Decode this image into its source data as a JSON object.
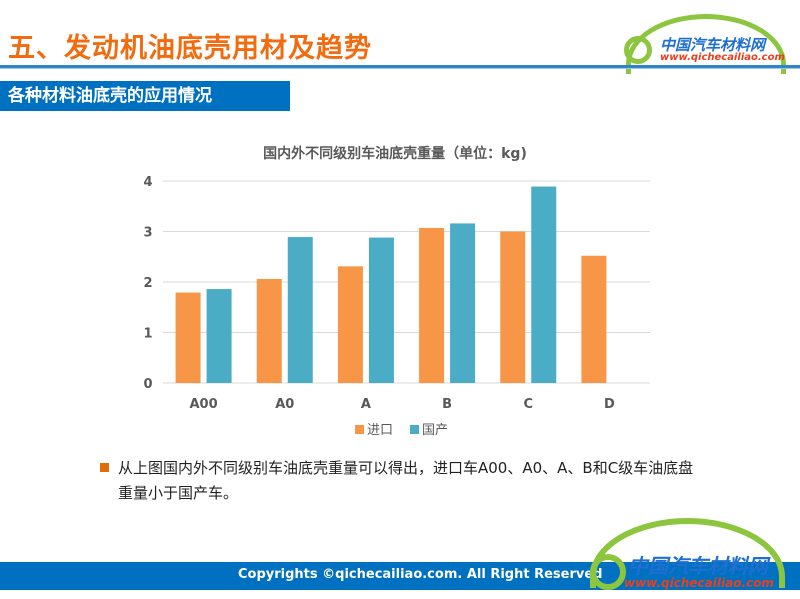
{
  "header": {
    "title": "五、发动机油底壳用材及趋势",
    "logo_cn": "中国汽车材料网",
    "logo_url": "www.qichecailiao.com"
  },
  "section": {
    "title": "各种材料油底壳的应用情况"
  },
  "colors": {
    "import": "#f79646",
    "domestic": "#4bacc6",
    "accent": "#0070c0"
  },
  "chart_data": {
    "type": "bar",
    "title": "国内外不同级别车油底壳重量（单位：kg)",
    "categories": [
      "A00",
      "A0",
      "A",
      "B",
      "C",
      "D"
    ],
    "series": [
      {
        "name": "进口",
        "values": [
          1.79,
          2.06,
          2.31,
          3.07,
          3.0,
          2.52
        ]
      },
      {
        "name": "国产",
        "values": [
          1.86,
          2.89,
          2.88,
          3.16,
          3.89,
          null
        ]
      }
    ],
    "yticks": [
      "0",
      "1",
      "2",
      "3",
      "4"
    ],
    "ylim": [
      0,
      4
    ],
    "grid": true,
    "legend": "bottom"
  },
  "note": "从上图国内外不同级别车油底壳重量可以得出，进口车A00、A0、A、B和C级车油底盘重量小于国产车。",
  "footer": {
    "copyright": "Copyrights ©qichecailiao.com. All Right Reserved",
    "logo_cn": "中国汽车材料网",
    "logo_url": "www.qichecailiao.com"
  }
}
